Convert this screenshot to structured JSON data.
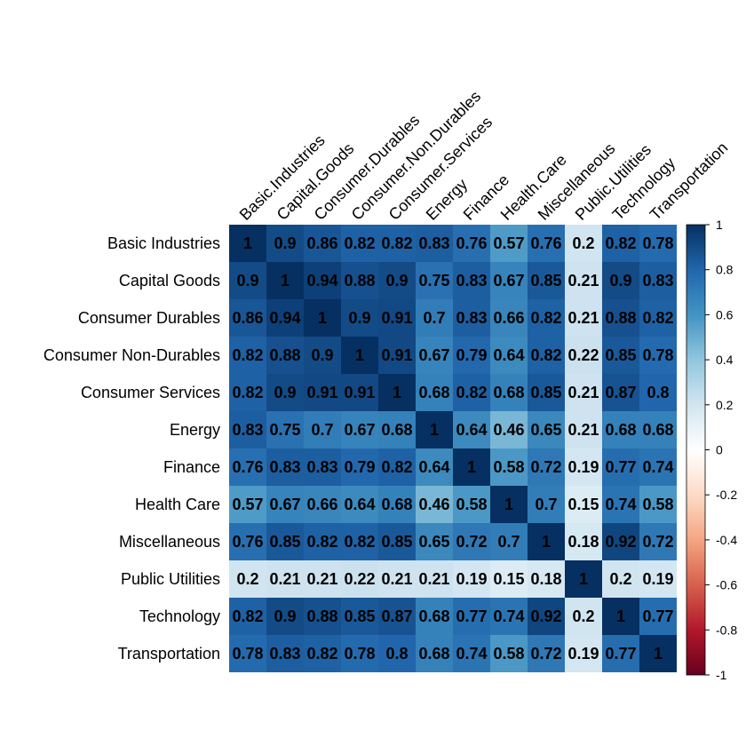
{
  "chart_data": {
    "type": "heatmap",
    "row_labels": [
      "Basic Industries",
      "Capital Goods",
      "Consumer Durables",
      "Consumer Non-Durables",
      "Consumer Services",
      "Energy",
      "Finance",
      "Health Care",
      "Miscellaneous",
      "Public Utilities",
      "Technology",
      "Transportation"
    ],
    "col_labels": [
      "Basic.Industries",
      "Capital.Goods",
      "Consumer.Durables",
      "Consumer.Non.Durables",
      "Consumer.Services",
      "Energy",
      "Finance",
      "Health.Care",
      "Miscellaneous",
      "Public.Utilities",
      "Technology",
      "Transportation"
    ],
    "values": [
      [
        1,
        0.9,
        0.86,
        0.82,
        0.82,
        0.83,
        0.76,
        0.57,
        0.76,
        0.2,
        0.82,
        0.78
      ],
      [
        0.9,
        1,
        0.94,
        0.88,
        0.9,
        0.75,
        0.83,
        0.67,
        0.85,
        0.21,
        0.9,
        0.83
      ],
      [
        0.86,
        0.94,
        1,
        0.9,
        0.91,
        0.7,
        0.83,
        0.66,
        0.82,
        0.21,
        0.88,
        0.82
      ],
      [
        0.82,
        0.88,
        0.9,
        1,
        0.91,
        0.67,
        0.79,
        0.64,
        0.82,
        0.22,
        0.85,
        0.78
      ],
      [
        0.82,
        0.9,
        0.91,
        0.91,
        1,
        0.68,
        0.82,
        0.68,
        0.85,
        0.21,
        0.87,
        0.8
      ],
      [
        0.83,
        0.75,
        0.7,
        0.67,
        0.68,
        1,
        0.64,
        0.46,
        0.65,
        0.21,
        0.68,
        0.68
      ],
      [
        0.76,
        0.83,
        0.83,
        0.79,
        0.82,
        0.64,
        1,
        0.58,
        0.72,
        0.19,
        0.77,
        0.74
      ],
      [
        0.57,
        0.67,
        0.66,
        0.64,
        0.68,
        0.46,
        0.58,
        1,
        0.7,
        0.15,
        0.74,
        0.58
      ],
      [
        0.76,
        0.85,
        0.82,
        0.82,
        0.85,
        0.65,
        0.72,
        0.7,
        1,
        0.18,
        0.92,
        0.72
      ],
      [
        0.2,
        0.21,
        0.21,
        0.22,
        0.21,
        0.21,
        0.19,
        0.15,
        0.18,
        1,
        0.2,
        0.19
      ],
      [
        0.82,
        0.9,
        0.88,
        0.85,
        0.87,
        0.68,
        0.77,
        0.74,
        0.92,
        0.2,
        1,
        0.77
      ],
      [
        0.78,
        0.83,
        0.82,
        0.78,
        0.8,
        0.68,
        0.74,
        0.58,
        0.72,
        0.19,
        0.77,
        1
      ]
    ],
    "colorbar": {
      "range": [
        -1,
        1
      ],
      "ticks": [
        "1",
        "0.8",
        "0.6",
        "0.4",
        "0.2",
        "0",
        "-0.2",
        "-0.4",
        "-0.6",
        "-0.8",
        "-1"
      ],
      "colors": [
        "#67001F",
        "#B2182B",
        "#D6604D",
        "#F4A582",
        "#FDDBC7",
        "#FFFFFF",
        "#D1E5F0",
        "#92C5DE",
        "#4393C3",
        "#2166AC",
        "#053061"
      ]
    }
  }
}
